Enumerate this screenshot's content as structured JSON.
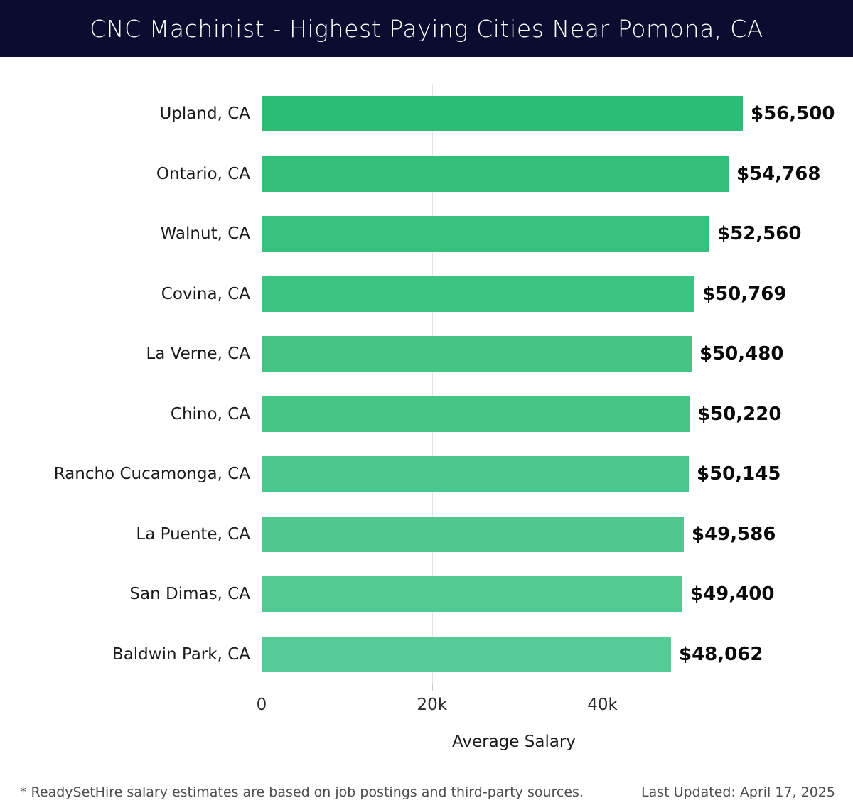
{
  "header": {
    "title": "CNC Machinist - Highest Paying Cities Near Pomona, CA",
    "bg_color": "#0a0c30",
    "text_color": "#ffffff"
  },
  "chart_data": {
    "type": "bar",
    "orientation": "horizontal",
    "title": "CNC Machinist - Highest Paying Cities Near Pomona, CA",
    "categories": [
      "Upland, CA",
      "Ontario, CA",
      "Walnut, CA",
      "Covina, CA",
      "La Verne, CA",
      "Chino, CA",
      "Rancho Cucamonga, CA",
      "La Puente, CA",
      "San Dimas, CA",
      "Baldwin Park, CA"
    ],
    "values": [
      56500,
      54768,
      52560,
      50769,
      50480,
      50220,
      50145,
      49586,
      49400,
      48062
    ],
    "value_labels": [
      "$56,500",
      "$54,768",
      "$52,560",
      "$50,769",
      "$50,480",
      "$50,220",
      "$50,145",
      "$49,586",
      "$49,400",
      "$48,062"
    ],
    "bar_colors": [
      "#2dbc75",
      "#33bf7a",
      "#38c07e",
      "#3ec282",
      "#43c486",
      "#47c589",
      "#4bc68c",
      "#4fc78f",
      "#53c992",
      "#57ca95"
    ],
    "x_ticks": [
      {
        "value": 0,
        "label": "0"
      },
      {
        "value": 20000,
        "label": "20k"
      },
      {
        "value": 40000,
        "label": "40k"
      }
    ],
    "xlabel": "Average Salary",
    "ylabel": "",
    "xlim": [
      0,
      59228
    ],
    "grid": "vertical-gridlines-on",
    "legend": "none",
    "gridline_color": "#e4e4e4"
  },
  "footer": {
    "note": "* ReadySetHire salary estimates are based on job postings and third-party sources.",
    "last_updated": "Last Updated: April 17, 2025"
  }
}
